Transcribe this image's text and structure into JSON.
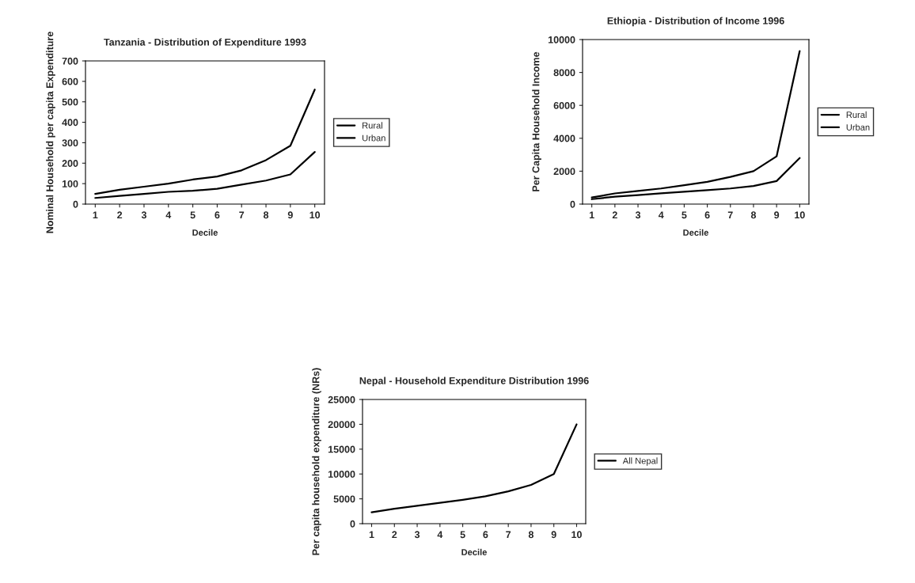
{
  "chart_data": [
    {
      "type": "line",
      "title": "Tanzania - Distribution of Expenditure 1993",
      "xlabel": "Decile",
      "ylabel": "Nominal Household per capita Expenditure",
      "categories": [
        "1",
        "2",
        "3",
        "4",
        "5",
        "6",
        "7",
        "8",
        "9",
        "10"
      ],
      "ylim": [
        0,
        700
      ],
      "yticks": [
        0,
        100,
        200,
        300,
        400,
        500,
        600,
        700
      ],
      "legend": "right",
      "grid": false,
      "series": [
        {
          "name": "Rural",
          "color": "#000000",
          "values": [
            30,
            40,
            50,
            60,
            65,
            75,
            95,
            115,
            145,
            255
          ]
        },
        {
          "name": "Urban",
          "color": "#000000",
          "values": [
            50,
            70,
            85,
            100,
            120,
            135,
            165,
            215,
            285,
            560
          ]
        }
      ]
    },
    {
      "type": "line",
      "title": "Ethiopia - Distribution of Income 1996",
      "xlabel": "Decile",
      "ylabel": "Per Capita Household Income",
      "categories": [
        "1",
        "2",
        "3",
        "4",
        "5",
        "6",
        "7",
        "8",
        "9",
        "10"
      ],
      "ylim": [
        0,
        10000
      ],
      "yticks": [
        0,
        2000,
        4000,
        6000,
        8000,
        10000
      ],
      "legend": "right",
      "grid": false,
      "series": [
        {
          "name": "Rural",
          "color": "#000000",
          "values": [
            300,
            450,
            550,
            650,
            750,
            850,
            950,
            1100,
            1400,
            2800
          ]
        },
        {
          "name": "Urban",
          "color": "#000000",
          "values": [
            400,
            650,
            800,
            950,
            1150,
            1350,
            1650,
            2000,
            2900,
            9300
          ]
        }
      ]
    },
    {
      "type": "line",
      "title": "Nepal - Household Expenditure Distribution 1996",
      "xlabel": "Decile",
      "ylabel": "Per capita household expenditure (NRs)",
      "categories": [
        "1",
        "2",
        "3",
        "4",
        "5",
        "6",
        "7",
        "8",
        "9",
        "10"
      ],
      "ylim": [
        0,
        25000
      ],
      "yticks": [
        0,
        5000,
        10000,
        15000,
        20000,
        25000
      ],
      "legend": "right",
      "grid": false,
      "series": [
        {
          "name": "All Nepal",
          "color": "#000000",
          "values": [
            2300,
            3000,
            3600,
            4200,
            4800,
            5500,
            6500,
            7800,
            10000,
            20000
          ]
        }
      ]
    }
  ]
}
